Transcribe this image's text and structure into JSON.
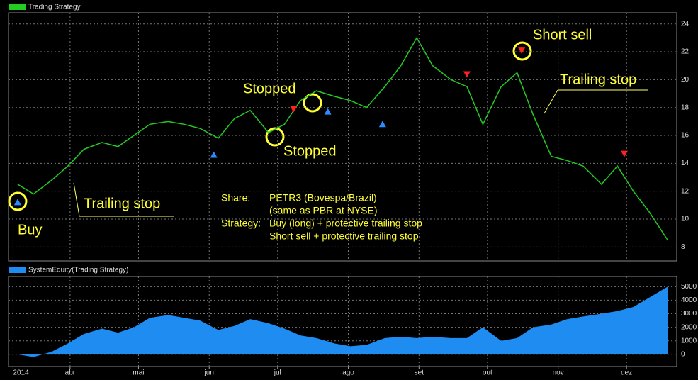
{
  "chart_data": [
    {
      "type": "line",
      "title": "Trading Strategy",
      "color": "#22cc22",
      "x": [
        68,
        75,
        83,
        90,
        97,
        105,
        112,
        119,
        126,
        134,
        141,
        148,
        156,
        163,
        170,
        178,
        185,
        192,
        199,
        207,
        214,
        221,
        229,
        236,
        243,
        250,
        258,
        265,
        272,
        280,
        287,
        294,
        302,
        309,
        316,
        324,
        331,
        338,
        345,
        353
      ],
      "values": [
        12.5,
        11.8,
        12.8,
        13.8,
        15.0,
        15.5,
        15.2,
        16.0,
        16.8,
        17.0,
        16.8,
        16.5,
        15.8,
        17.2,
        17.8,
        16.2,
        16.8,
        18.5,
        19.2,
        18.8,
        18.5,
        18.0,
        19.5,
        21.0,
        23.0,
        21.0,
        20.0,
        19.5,
        16.8,
        19.5,
        20.5,
        17.5,
        14.5,
        14.2,
        13.8,
        12.5,
        13.8,
        12.0,
        10.5,
        8.5
      ],
      "xlim": [
        64,
        357
      ],
      "ylim": [
        7,
        24.8
      ],
      "yticks": [
        8,
        10,
        12,
        14,
        16,
        18,
        20,
        22,
        24
      ],
      "grid": true,
      "buy_signals": {
        "color": "#2a8cff",
        "x": [
          68,
          154,
          204,
          228
        ],
        "values": [
          11.2,
          14.6,
          17.7,
          16.8
        ]
      },
      "sell_signals": {
        "color": "#ff2020",
        "x": [
          189,
          265,
          289,
          334
        ],
        "values": [
          17.9,
          20.4,
          22.1,
          14.7
        ]
      },
      "annotations": [
        "Buy",
        "Trailing stop",
        "Stopped",
        "Stopped",
        "Short sell",
        "Trailing stop"
      ],
      "info": [
        "Share:",
        "PETR3 (Bovespa/Brazil)",
        "(same as PBR at NYSE)",
        "Strategy:",
        "Buy (long) + protective trailing stop",
        "Short sell + protective trailing stop"
      ]
    },
    {
      "type": "area",
      "title": "SystemEquity(Trading Strategy)",
      "color": "#1e8cf0",
      "x": [
        68,
        75,
        83,
        90,
        97,
        105,
        112,
        119,
        126,
        134,
        141,
        148,
        156,
        163,
        170,
        178,
        185,
        192,
        199,
        207,
        214,
        221,
        229,
        236,
        243,
        250,
        258,
        265,
        272,
        280,
        287,
        294,
        302,
        309,
        316,
        324,
        331,
        338,
        345,
        353
      ],
      "values": [
        0,
        -200,
        200,
        800,
        1500,
        1900,
        1600,
        2000,
        2700,
        2900,
        2700,
        2500,
        1800,
        2100,
        2600,
        2300,
        1900,
        1400,
        1200,
        800,
        600,
        700,
        1200,
        1300,
        1200,
        1300,
        1200,
        1200,
        2000,
        1000,
        1200,
        2000,
        2200,
        2600,
        2800,
        3000,
        3200,
        3500,
        4200,
        5000
      ],
      "xlim": [
        64,
        357
      ],
      "ylim": [
        -900,
        5750
      ],
      "yticks": [
        0,
        1000,
        2000,
        3000,
        4000,
        5000
      ],
      "grid": true,
      "xticks": [
        {
          "value": 66,
          "label": "2014"
        },
        {
          "value": 91,
          "label": "abr"
        },
        {
          "value": 121,
          "label": "mai"
        },
        {
          "value": 152,
          "label": "jun"
        },
        {
          "value": 182,
          "label": "jul"
        },
        {
          "value": 213,
          "label": "ago"
        },
        {
          "value": 244,
          "label": "set"
        },
        {
          "value": 274,
          "label": "out"
        },
        {
          "value": 305,
          "label": "nov"
        },
        {
          "value": 335,
          "label": "dez"
        }
      ]
    }
  ]
}
